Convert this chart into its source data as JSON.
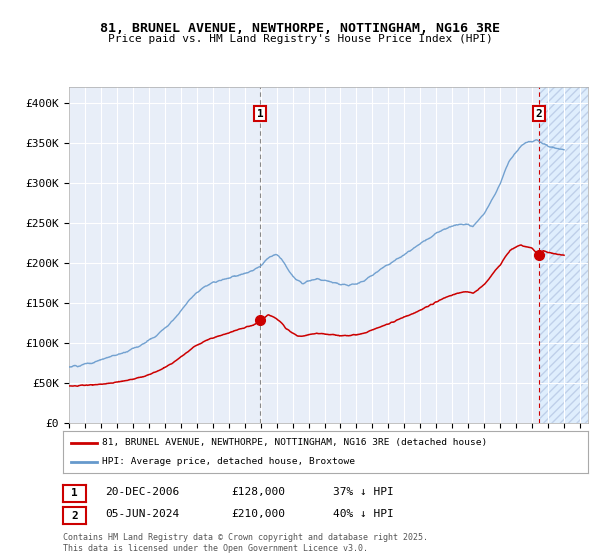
{
  "title_line1": "81, BRUNEL AVENUE, NEWTHORPE, NOTTINGHAM, NG16 3RE",
  "title_line2": "Price paid vs. HM Land Registry's House Price Index (HPI)",
  "ylim": [
    0,
    420000
  ],
  "xlim_start": 1995.0,
  "xlim_end": 2027.5,
  "yticks": [
    0,
    50000,
    100000,
    150000,
    200000,
    250000,
    300000,
    350000,
    400000
  ],
  "ytick_labels": [
    "£0",
    "£50K",
    "£100K",
    "£150K",
    "£200K",
    "£250K",
    "£300K",
    "£350K",
    "£400K"
  ],
  "xtick_years": [
    1995,
    1996,
    1997,
    1998,
    1999,
    2000,
    2001,
    2002,
    2003,
    2004,
    2005,
    2006,
    2007,
    2008,
    2009,
    2010,
    2011,
    2012,
    2013,
    2014,
    2015,
    2016,
    2017,
    2018,
    2019,
    2020,
    2021,
    2022,
    2023,
    2024,
    2025,
    2026,
    2027
  ],
  "hpi_color": "#6699cc",
  "price_color": "#cc0000",
  "bg_color": "#e8eef8",
  "grid_color": "#ffffff",
  "sale1_x": 2006.97,
  "sale1_y": 128000,
  "sale2_x": 2024.43,
  "sale2_y": 210000,
  "legend_label1": "81, BRUNEL AVENUE, NEWTHORPE, NOTTINGHAM, NG16 3RE (detached house)",
  "legend_label2": "HPI: Average price, detached house, Broxtowe",
  "sale1_date": "20-DEC-2006",
  "sale1_price": "£128,000",
  "sale1_hpi": "37% ↓ HPI",
  "sale2_date": "05-JUN-2024",
  "sale2_price": "£210,000",
  "sale2_hpi": "40% ↓ HPI",
  "footer": "Contains HM Land Registry data © Crown copyright and database right 2025.\nThis data is licensed under the Open Government Licence v3.0.",
  "hpi_anchors": [
    [
      1995.0,
      70000
    ],
    [
      1995.5,
      71000
    ],
    [
      1996.0,
      73000
    ],
    [
      1996.5,
      75000
    ],
    [
      1997.0,
      79000
    ],
    [
      1997.5,
      82000
    ],
    [
      1998.0,
      85000
    ],
    [
      1998.5,
      88000
    ],
    [
      1999.0,
      93000
    ],
    [
      1999.5,
      97000
    ],
    [
      2000.0,
      103000
    ],
    [
      2000.5,
      110000
    ],
    [
      2001.0,
      118000
    ],
    [
      2001.5,
      128000
    ],
    [
      2002.0,
      140000
    ],
    [
      2002.5,
      153000
    ],
    [
      2003.0,
      163000
    ],
    [
      2003.5,
      170000
    ],
    [
      2004.0,
      175000
    ],
    [
      2004.5,
      178000
    ],
    [
      2005.0,
      181000
    ],
    [
      2005.5,
      184000
    ],
    [
      2006.0,
      186000
    ],
    [
      2006.5,
      190000
    ],
    [
      2007.0,
      196000
    ],
    [
      2007.3,
      203000
    ],
    [
      2007.6,
      208000
    ],
    [
      2008.0,
      210000
    ],
    [
      2008.3,
      205000
    ],
    [
      2008.6,
      195000
    ],
    [
      2009.0,
      183000
    ],
    [
      2009.3,
      178000
    ],
    [
      2009.6,
      175000
    ],
    [
      2010.0,
      178000
    ],
    [
      2010.5,
      180000
    ],
    [
      2011.0,
      178000
    ],
    [
      2011.5,
      176000
    ],
    [
      2012.0,
      173000
    ],
    [
      2012.5,
      172000
    ],
    [
      2013.0,
      174000
    ],
    [
      2013.5,
      178000
    ],
    [
      2014.0,
      185000
    ],
    [
      2014.5,
      192000
    ],
    [
      2015.0,
      198000
    ],
    [
      2015.5,
      204000
    ],
    [
      2016.0,
      210000
    ],
    [
      2016.5,
      217000
    ],
    [
      2017.0,
      224000
    ],
    [
      2017.5,
      230000
    ],
    [
      2018.0,
      237000
    ],
    [
      2018.5,
      242000
    ],
    [
      2019.0,
      246000
    ],
    [
      2019.5,
      248000
    ],
    [
      2020.0,
      248000
    ],
    [
      2020.3,
      245000
    ],
    [
      2020.6,
      252000
    ],
    [
      2021.0,
      262000
    ],
    [
      2021.3,
      272000
    ],
    [
      2021.6,
      283000
    ],
    [
      2022.0,
      298000
    ],
    [
      2022.3,
      315000
    ],
    [
      2022.6,
      328000
    ],
    [
      2023.0,
      338000
    ],
    [
      2023.3,
      345000
    ],
    [
      2023.6,
      350000
    ],
    [
      2024.0,
      352000
    ],
    [
      2024.3,
      354000
    ],
    [
      2024.5,
      351000
    ],
    [
      2024.8,
      348000
    ],
    [
      2025.0,
      346000
    ],
    [
      2025.5,
      343000
    ],
    [
      2026.0,
      341000
    ]
  ],
  "red_anchors_seg1": [
    [
      1995.0,
      46000
    ],
    [
      1995.5,
      46500
    ],
    [
      1996.0,
      47000
    ],
    [
      1996.5,
      47500
    ],
    [
      1997.0,
      48500
    ],
    [
      1997.5,
      49500
    ],
    [
      1998.0,
      51000
    ],
    [
      1998.5,
      52500
    ],
    [
      1999.0,
      54500
    ],
    [
      1999.5,
      57000
    ],
    [
      2000.0,
      60000
    ],
    [
      2000.5,
      64000
    ],
    [
      2001.0,
      69000
    ],
    [
      2001.5,
      75000
    ],
    [
      2002.0,
      82000
    ],
    [
      2002.5,
      90000
    ],
    [
      2003.0,
      97000
    ],
    [
      2003.5,
      102000
    ],
    [
      2004.0,
      106000
    ],
    [
      2004.5,
      109000
    ],
    [
      2005.0,
      112000
    ],
    [
      2005.5,
      116000
    ],
    [
      2006.0,
      119000
    ],
    [
      2006.5,
      122000
    ],
    [
      2006.97,
      128000
    ]
  ],
  "red_anchors_seg2": [
    [
      2006.97,
      128000
    ],
    [
      2007.3,
      132000
    ],
    [
      2007.5,
      135000
    ],
    [
      2007.7,
      133000
    ],
    [
      2008.0,
      130000
    ],
    [
      2008.3,
      125000
    ],
    [
      2008.6,
      118000
    ],
    [
      2009.0,
      112000
    ],
    [
      2009.3,
      109000
    ],
    [
      2009.6,
      108000
    ],
    [
      2010.0,
      110000
    ],
    [
      2010.5,
      112000
    ],
    [
      2011.0,
      111000
    ],
    [
      2011.5,
      110000
    ],
    [
      2012.0,
      109000
    ],
    [
      2012.5,
      109000
    ],
    [
      2013.0,
      110000
    ],
    [
      2013.5,
      112000
    ],
    [
      2014.0,
      116000
    ],
    [
      2014.5,
      120000
    ],
    [
      2015.0,
      124000
    ],
    [
      2015.5,
      128000
    ],
    [
      2016.0,
      132000
    ],
    [
      2016.5,
      136000
    ],
    [
      2017.0,
      141000
    ],
    [
      2017.5,
      146000
    ],
    [
      2018.0,
      151000
    ],
    [
      2018.5,
      156000
    ],
    [
      2019.0,
      160000
    ],
    [
      2019.5,
      163000
    ],
    [
      2020.0,
      164000
    ],
    [
      2020.3,
      162000
    ],
    [
      2020.6,
      166000
    ],
    [
      2021.0,
      173000
    ],
    [
      2021.3,
      180000
    ],
    [
      2021.6,
      188000
    ],
    [
      2022.0,
      197000
    ],
    [
      2022.3,
      207000
    ],
    [
      2022.6,
      215000
    ],
    [
      2023.0,
      220000
    ],
    [
      2023.3,
      222000
    ],
    [
      2023.6,
      220000
    ],
    [
      2024.0,
      218000
    ],
    [
      2024.43,
      210000
    ],
    [
      2024.7,
      215000
    ],
    [
      2025.0,
      213000
    ],
    [
      2025.5,
      211000
    ],
    [
      2026.0,
      209000
    ]
  ]
}
